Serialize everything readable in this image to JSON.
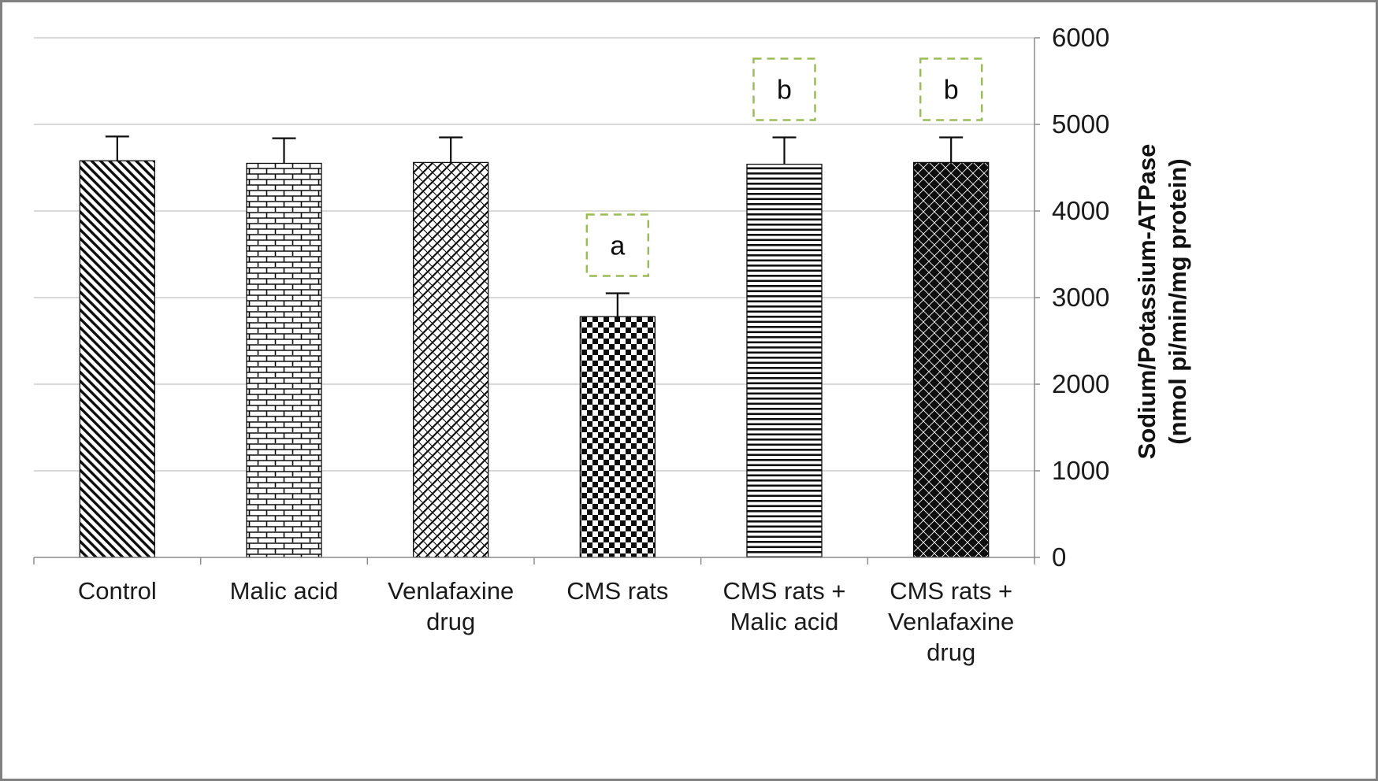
{
  "figure": {
    "border_color": "#808080",
    "background": "#ffffff"
  },
  "chart_data": {
    "type": "bar",
    "title": "",
    "xlabel": "",
    "ylabel_line1": "Sodium/Potassium-ATPase",
    "ylabel_line2": "(nmol pi/min/mg protein)",
    "axis_side": "right",
    "grid": true,
    "legend": "none",
    "ylim": [
      0,
      6000
    ],
    "ytick_interval": 1000,
    "yticks": [
      0,
      1000,
      2000,
      3000,
      4000,
      5000,
      6000
    ],
    "categories": [
      "Control",
      "Malic acid",
      "Venlafaxine drug",
      "CMS rats",
      "CMS rats + Malic acid",
      "CMS rats + Venlafaxine drug"
    ],
    "category_lines": [
      [
        "Control"
      ],
      [
        "Malic acid"
      ],
      [
        "Venlafaxine",
        "drug"
      ],
      [
        "CMS rats"
      ],
      [
        "CMS rats +",
        "Malic acid"
      ],
      [
        "CMS rats +",
        "Venlafaxine",
        "drug"
      ]
    ],
    "values": [
      4580,
      4550,
      4560,
      2780,
      4540,
      4560
    ],
    "error_bars": [
      280,
      290,
      290,
      270,
      310,
      290
    ],
    "bar_patterns": [
      "diagonal-stripes",
      "brick",
      "weave",
      "checkerboard",
      "horizontal-stripes",
      "diamond-grid"
    ],
    "annotations": [
      {
        "label": "a",
        "category_index": 3
      },
      {
        "label": "b",
        "category_index": 4
      },
      {
        "label": "b",
        "category_index": 5
      }
    ],
    "colors": {
      "bar_ink": "#0d0d0d",
      "grid": "#b3b3b3",
      "axis": "#8c8c8c",
      "annotation_box": "#9bbb59",
      "text": "#1a1a1a"
    }
  }
}
